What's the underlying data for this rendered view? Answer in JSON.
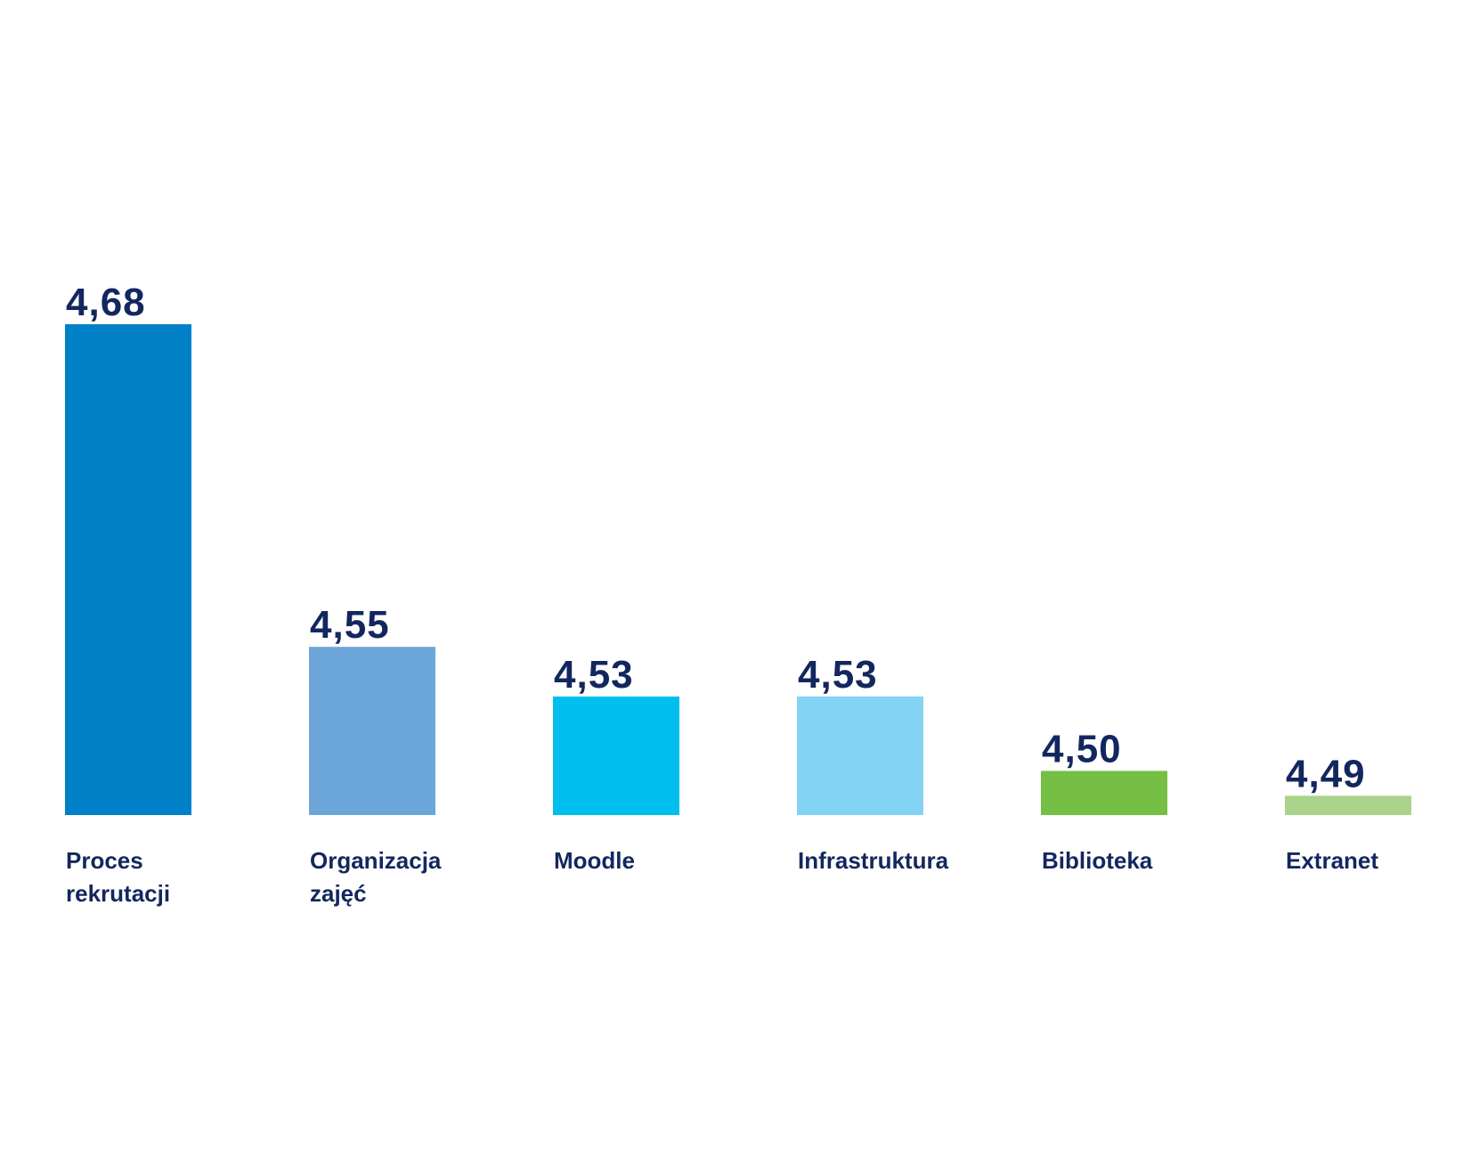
{
  "chart_data": {
    "type": "bar",
    "title": "",
    "xlabel": "",
    "ylabel": "",
    "grid": false,
    "legend": "none",
    "categories": [
      [
        "Proces",
        "rekrutacji"
      ],
      [
        "Organizacja",
        "zajęć"
      ],
      [
        "Moodle"
      ],
      [
        "Infrastruktura"
      ],
      [
        "Biblioteka"
      ],
      [
        "Extranet"
      ]
    ],
    "values": [
      4.68,
      4.55,
      4.53,
      4.53,
      4.5,
      4.49
    ],
    "value_labels": [
      "4,68",
      "4,55",
      "4,53",
      "4,53",
      "4,50",
      "4,49"
    ],
    "bar_colors": [
      "#0080c6",
      "#6ca6d8",
      "#00bfef",
      "#83d3f5",
      "#74bf44",
      "#acd38c"
    ]
  },
  "colors": {
    "label_text": "#13275f",
    "background": "#ffffff"
  }
}
